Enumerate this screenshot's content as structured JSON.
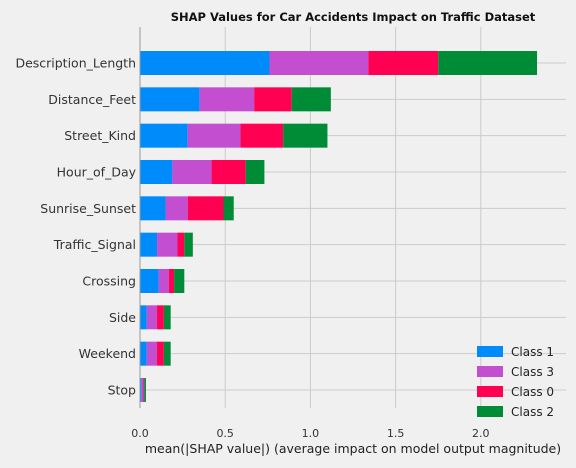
{
  "chart_data": {
    "type": "bar",
    "orientation": "horizontal",
    "stacked": true,
    "title": "SHAP Values for Car Accidents Impact on Traffic Dataset",
    "xlabel": "mean(|SHAP value|) (average impact on model output magnitude)",
    "ylabel": "",
    "xlim": [
      0,
      2.5
    ],
    "xticks": [
      0.0,
      0.5,
      1.0,
      1.5,
      2.0
    ],
    "xtick_labels": [
      "0.0",
      "0.5",
      "1.0",
      "1.5",
      "2.0"
    ],
    "grid": true,
    "legend_position": "lower-right",
    "categories": [
      "Description_Length",
      "Distance_Feet",
      "Street_Kind",
      "Hour_of_Day",
      "Sunrise_Sunset",
      "Traffic_Signal",
      "Crossing",
      "Side",
      "Weekend",
      "Stop"
    ],
    "series": [
      {
        "name": "Class 1",
        "color": "#008bfb",
        "values": [
          0.76,
          0.35,
          0.28,
          0.19,
          0.15,
          0.1,
          0.11,
          0.04,
          0.04,
          0.01
        ]
      },
      {
        "name": "Class 3",
        "color": "#c34fd0",
        "values": [
          0.58,
          0.32,
          0.31,
          0.23,
          0.13,
          0.12,
          0.06,
          0.06,
          0.06,
          0.01
        ]
      },
      {
        "name": "Class 0",
        "color": "#ff0052",
        "values": [
          0.41,
          0.22,
          0.25,
          0.2,
          0.21,
          0.04,
          0.03,
          0.04,
          0.04,
          0.005
        ]
      },
      {
        "name": "Class 2",
        "color": "#008c36",
        "values": [
          0.58,
          0.23,
          0.26,
          0.11,
          0.06,
          0.05,
          0.06,
          0.04,
          0.04,
          0.01
        ]
      }
    ]
  }
}
